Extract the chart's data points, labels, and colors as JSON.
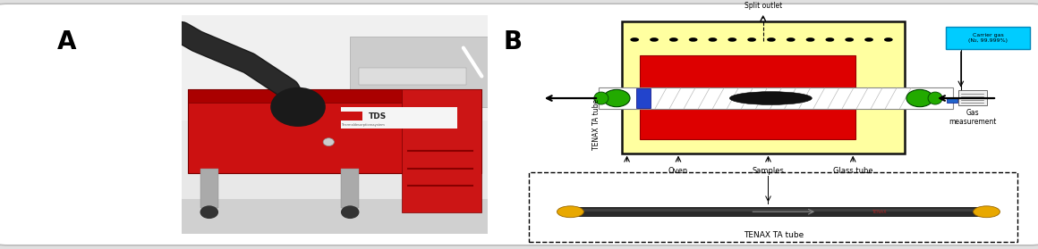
{
  "fig_width": 11.6,
  "fig_height": 2.79,
  "dpi": 100,
  "outer_bg": "#e0e0e0",
  "panel_bg": "#ffffff",
  "label_A": "A",
  "label_B": "B",
  "label_fontsize": 20,
  "label_fontweight": "bold",
  "oven_fill": "#ffffa0",
  "oven_edge": "#111111",
  "red_fill": "#dd0000",
  "red_edge": "#990000",
  "tube_fill": "#ffffff",
  "tube_edge": "#888888",
  "green_fill": "#22aa00",
  "green_edge": "#004400",
  "blue_fill": "#2244cc",
  "blue_edge": "#000077",
  "carrier_fill": "#00ccff",
  "carrier_edge": "#0088bb",
  "carrier_text": "Carrier gas\n(N₂, 99.999%)",
  "split_text": "Split outlet",
  "tenax_left_text": "TENAX TA tube",
  "oven_lbl": "Oven",
  "samples_lbl": "Samples",
  "glass_lbl": "Glass tube",
  "gas_lbl": "Gas\nmeasurement",
  "tenax_bottom_text": "TENAX TA tube",
  "lbl_fs": 6.0,
  "small_fs": 5.5
}
